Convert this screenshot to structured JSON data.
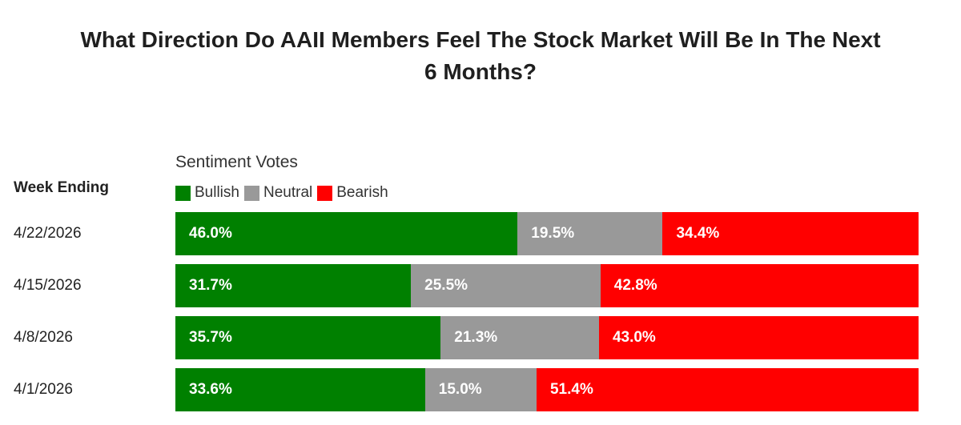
{
  "chart_data": {
    "type": "bar",
    "orientation": "horizontal",
    "stacked": true,
    "title_line1": "What Direction Do AAII Members Feel The Stock Market Will Be In The Next",
    "title_line2": "6 Months?",
    "legend_title": "Sentiment Votes",
    "category_header": "Week Ending",
    "legend_placement": "top-left",
    "grid": false,
    "xlim": [
      0,
      100
    ],
    "categories": [
      "4/22/2026",
      "4/15/2026",
      "4/8/2026",
      "4/1/2026"
    ],
    "series": [
      {
        "name": "Bullish",
        "color": "#008000",
        "values": [
          46.0,
          31.7,
          35.7,
          33.6
        ],
        "labels": [
          "46.0%",
          "31.7%",
          "35.7%",
          "33.6%"
        ]
      },
      {
        "name": "Neutral",
        "color": "#999999",
        "values": [
          19.5,
          25.5,
          21.3,
          15.0
        ],
        "labels": [
          "19.5%",
          "25.5%",
          "21.3%",
          "15.0%"
        ]
      },
      {
        "name": "Bearish",
        "color": "#ff0000",
        "values": [
          34.4,
          42.8,
          43.0,
          51.4
        ],
        "labels": [
          "34.4%",
          "42.8%",
          "43.0%",
          "51.4%"
        ]
      }
    ]
  }
}
